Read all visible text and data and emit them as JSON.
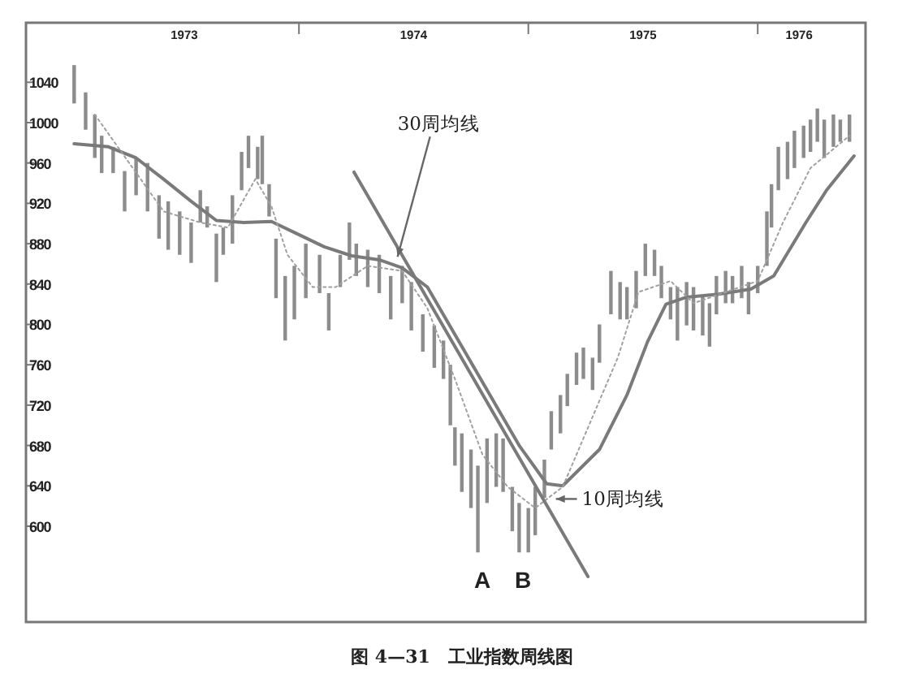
{
  "chart_data": {
    "type": "bar",
    "xlim": [
      1972.81,
      1976.47
    ],
    "ylim": [
      505,
      1099
    ],
    "xticks": [
      {
        "value": 1973.5,
        "label": "1973"
      },
      {
        "value": 1974,
        "label": null
      },
      {
        "value": 1974.5,
        "label": "1974"
      },
      {
        "value": 1975,
        "label": null
      },
      {
        "value": 1975.5,
        "label": "1975"
      },
      {
        "value": 1976,
        "label": null
      },
      {
        "value": 1976.18,
        "label": "1976"
      }
    ],
    "yticks": [
      600,
      640,
      680,
      720,
      760,
      800,
      840,
      880,
      920,
      960,
      1000,
      1040
    ],
    "grid": false,
    "series": [
      {
        "color": "#8c8c8c",
        "x": [
          1973.02,
          1973.07,
          1973.11,
          1973.14,
          1973.19,
          1973.24,
          1973.29,
          1973.34,
          1973.39,
          1973.43,
          1973.48,
          1973.53,
          1973.57,
          1973.6,
          1973.64,
          1973.67,
          1973.71,
          1973.75,
          1973.78,
          1973.82,
          1973.84,
          1973.87,
          1973.9,
          1973.94,
          1973.98,
          1974.03,
          1974.09,
          1974.13,
          1974.18,
          1974.22,
          1974.25,
          1974.3,
          1974.35,
          1974.4,
          1974.45,
          1974.49,
          1974.54,
          1974.59,
          1974.63,
          1974.66,
          1974.68,
          1974.71,
          1974.75,
          1974.78,
          1974.82,
          1974.86,
          1974.89,
          1974.93,
          1974.96,
          1975.0,
          1975.03,
          1975.07,
          1975.1,
          1975.14,
          1975.17,
          1975.21,
          1975.24,
          1975.28,
          1975.31,
          1975.36,
          1975.4,
          1975.43,
          1975.47,
          1975.51,
          1975.55,
          1975.58,
          1975.62,
          1975.65,
          1975.69,
          1975.72,
          1975.76,
          1975.79,
          1975.82,
          1975.86,
          1975.89,
          1975.93,
          1975.96,
          1976.0,
          1976.04,
          1976.06,
          1976.09,
          1976.13,
          1976.16,
          1976.2,
          1976.23,
          1976.26,
          1976.29,
          1976.33,
          1976.36,
          1976.4
        ],
        "base": [
          1019,
          993,
          965,
          950,
          950,
          912,
          928,
          912,
          885,
          874,
          869,
          861,
          901,
          896,
          842,
          869,
          880,
          933,
          955,
          944,
          939,
          907,
          826,
          784,
          805,
          826,
          831,
          794,
          837,
          864,
          848,
          837,
          831,
          805,
          821,
          794,
          773,
          757,
          746,
          700,
          660,
          634,
          618,
          574,
          623,
          639,
          634,
          595,
          574,
          574,
          591,
          628,
          676,
          692,
          719,
          740,
          746,
          735,
          762,
          810,
          805,
          805,
          816,
          848,
          848,
          826,
          805,
          784,
          799,
          794,
          789,
          778,
          810,
          821,
          821,
          826,
          810,
          831,
          858,
          896,
          933,
          944,
          955,
          965,
          971,
          981,
          965,
          976,
          981,
          981
        ],
        "values": [
          38,
          37,
          43,
          37,
          26,
          40,
          37,
          48,
          43,
          48,
          43,
          40,
          32,
          21,
          48,
          27,
          48,
          38,
          32,
          32,
          48,
          32,
          59,
          64,
          53,
          54,
          38,
          37,
          32,
          37,
          32,
          37,
          38,
          43,
          37,
          48,
          37,
          42,
          38,
          60,
          38,
          58,
          58,
          86,
          64,
          53,
          53,
          44,
          49,
          44,
          48,
          38,
          38,
          38,
          32,
          32,
          31,
          32,
          38,
          43,
          37,
          32,
          37,
          32,
          26,
          32,
          32,
          53,
          43,
          43,
          38,
          43,
          38,
          32,
          27,
          32,
          32,
          27,
          54,
          43,
          43,
          37,
          37,
          32,
          32,
          33,
          38,
          32,
          22,
          27
        ]
      },
      {
        "type": "line",
        "color": "#7a7a7a",
        "line_style": "solid",
        "x": [
          1973.02,
          1973.17,
          1973.29,
          1973.41,
          1973.53,
          1973.64,
          1973.76,
          1973.88,
          1973.99,
          1974.11,
          1974.23,
          1974.35,
          1974.45,
          1974.56,
          1974.68,
          1974.82,
          1974.96,
          1975.08,
          1975.15,
          1975.31,
          1975.43,
          1975.52,
          1975.6,
          1975.69,
          1975.83,
          1975.97,
          1976.07,
          1976.21,
          1976.3,
          1976.42
        ],
        "values": [
          979,
          976,
          965,
          944,
          922,
          903,
          901,
          902,
          890,
          877,
          868,
          864,
          856,
          837,
          790,
          735,
          680,
          642,
          640,
          676,
          730,
          783,
          820,
          827,
          830,
          835,
          848,
          901,
          933,
          967
        ]
      },
      {
        "type": "line",
        "color": "#a0a0a0",
        "line_style": "dotted",
        "x": [
          1973.11,
          1973.41,
          1973.57,
          1973.69,
          1973.81,
          1973.88,
          1973.95,
          1974.06,
          1974.16,
          1974.3,
          1974.45,
          1974.56,
          1974.68,
          1974.8,
          1974.91,
          1975.03,
          1975.15,
          1975.27,
          1975.39,
          1975.48,
          1975.62,
          1975.72,
          1975.86,
          1976.0,
          1976.11,
          1976.23,
          1976.4
        ],
        "values": [
          1008,
          912,
          901,
          896,
          944,
          917,
          869,
          837,
          837,
          858,
          853,
          816,
          746,
          671,
          639,
          618,
          639,
          703,
          767,
          832,
          843,
          821,
          832,
          843,
          901,
          955,
          987
        ]
      },
      {
        "type": "line",
        "color": "#7a7a7a",
        "line_style": "solid",
        "x": [
          1974.24,
          1975.26
        ],
        "values": [
          951,
          550
        ]
      }
    ],
    "annotations": [
      {
        "text": "30周均线",
        "x": 1974.43,
        "y": 867
      },
      {
        "text": "10周均线",
        "x": 1975.12,
        "y": 627
      },
      "A",
      "B",
      "图 4—31　工业指数周线图"
    ]
  }
}
